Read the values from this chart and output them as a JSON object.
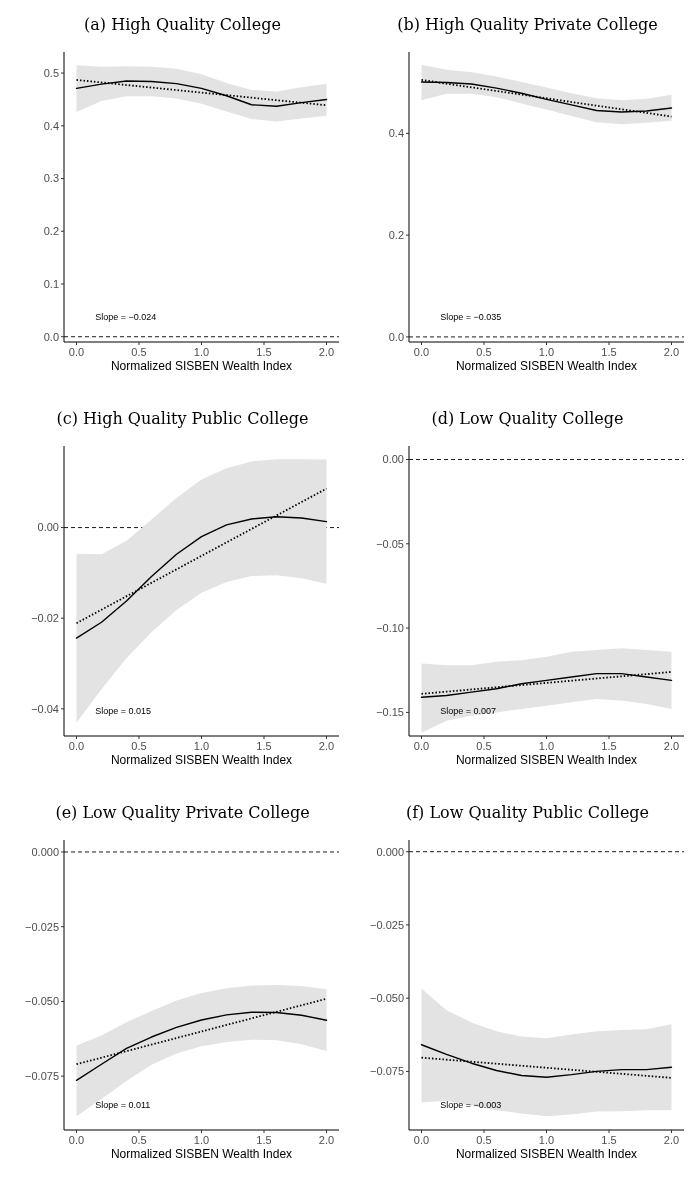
{
  "chart_data": [
    {
      "type": "line",
      "title": "(a) High Quality College",
      "xlabel": "Normalized SISBEN Wealth Index",
      "xlim": [
        -0.1,
        2.1
      ],
      "xticks": [
        {
          "value": 0,
          "label": "0.0"
        },
        {
          "value": 0.5,
          "label": "0.5"
        },
        {
          "value": 1,
          "label": "1.0"
        },
        {
          "value": 1.5,
          "label": "1.5"
        },
        {
          "value": 2,
          "label": "2.0"
        }
      ],
      "ylim": [
        -0.01,
        0.54
      ],
      "yticks": [
        {
          "value": 0,
          "label": "0.0"
        },
        {
          "value": 0.1,
          "label": "0.1"
        },
        {
          "value": 0.2,
          "label": "0.2"
        },
        {
          "value": 0.3,
          "label": "0.3"
        },
        {
          "value": 0.4,
          "label": "0.4"
        },
        {
          "value": 0.5,
          "label": "0.5"
        }
      ],
      "ref_lines": [
        {
          "axis": "y",
          "value": 0,
          "line_style": "dashed"
        }
      ],
      "annotations": [
        "Slope = −0.024"
      ],
      "series": [
        {
          "color": "#000000",
          "line_style": "solid",
          "x": [
            0,
            0.2,
            0.4,
            0.6,
            0.8,
            1,
            1.2,
            1.4,
            1.6,
            1.8,
            2
          ],
          "values": [
            0.471,
            0.479,
            0.485,
            0.484,
            0.48,
            0.471,
            0.457,
            0.44,
            0.437,
            0.444,
            0.45
          ],
          "lower": [
            0.426,
            0.447,
            0.456,
            0.456,
            0.452,
            0.442,
            0.427,
            0.413,
            0.408,
            0.414,
            0.419
          ],
          "upper": [
            0.515,
            0.512,
            0.513,
            0.512,
            0.508,
            0.498,
            0.481,
            0.468,
            0.465,
            0.473,
            0.48
          ]
        },
        {
          "color": "#000000",
          "line_style": "dotted",
          "x": [
            0,
            2
          ],
          "values": [
            0.487,
            0.439
          ]
        }
      ]
    },
    {
      "type": "line",
      "title": "(b) High Quality Private College",
      "xlabel": "Normalized SISBEN Wealth Index",
      "xlim": [
        -0.1,
        2.1
      ],
      "xticks": [
        {
          "value": 0,
          "label": "0.0"
        },
        {
          "value": 0.5,
          "label": "0.5"
        },
        {
          "value": 1,
          "label": "1.0"
        },
        {
          "value": 1.5,
          "label": "1.5"
        },
        {
          "value": 2,
          "label": "2.0"
        }
      ],
      "ylim": [
        -0.01,
        0.56
      ],
      "yticks": [
        {
          "value": 0,
          "label": "0.0"
        },
        {
          "value": 0.2,
          "label": "0.2"
        },
        {
          "value": 0.4,
          "label": "0.4"
        }
      ],
      "ref_lines": [
        {
          "axis": "y",
          "value": 0,
          "line_style": "dashed"
        }
      ],
      "annotations": [
        "Slope = −0.035"
      ],
      "series": [
        {
          "color": "#000000",
          "line_style": "solid",
          "x": [
            0,
            0.2,
            0.4,
            0.6,
            0.8,
            1,
            1.2,
            1.4,
            1.6,
            1.8,
            2
          ],
          "values": [
            0.501,
            0.5,
            0.497,
            0.489,
            0.479,
            0.467,
            0.456,
            0.445,
            0.442,
            0.444,
            0.45
          ],
          "lower": [
            0.465,
            0.478,
            0.478,
            0.471,
            0.459,
            0.447,
            0.434,
            0.422,
            0.418,
            0.421,
            0.425
          ],
          "upper": [
            0.535,
            0.525,
            0.52,
            0.512,
            0.501,
            0.49,
            0.479,
            0.469,
            0.465,
            0.468,
            0.476
          ]
        },
        {
          "color": "#000000",
          "line_style": "dotted",
          "x": [
            0,
            2
          ],
          "values": [
            0.505,
            0.433
          ]
        }
      ]
    },
    {
      "type": "line",
      "title": "(c) High Quality Public College",
      "xlabel": "Normalized SISBEN Wealth Index",
      "xlim": [
        -0.1,
        2.1
      ],
      "xticks": [
        {
          "value": 0,
          "label": "0.0"
        },
        {
          "value": 0.5,
          "label": "0.5"
        },
        {
          "value": 1,
          "label": "1.0"
        },
        {
          "value": 1.5,
          "label": "1.5"
        },
        {
          "value": 2,
          "label": "2.0"
        }
      ],
      "ylim": [
        -0.046,
        0.018
      ],
      "yticks": [
        {
          "value": -0.04,
          "label": "−0.04"
        },
        {
          "value": -0.02,
          "label": "−0.02"
        },
        {
          "value": 0,
          "label": "0.00"
        }
      ],
      "ref_lines": [
        {
          "axis": "y",
          "value": 0,
          "line_style": "dashed"
        }
      ],
      "annotations": [
        "Slope = 0.015"
      ],
      "series": [
        {
          "color": "#000000",
          "line_style": "solid",
          "x": [
            0,
            0.2,
            0.4,
            0.6,
            0.8,
            1,
            1.2,
            1.4,
            1.6,
            1.8,
            2
          ],
          "values": [
            -0.0244,
            -0.0209,
            -0.0162,
            -0.0108,
            -0.0059,
            -0.002,
            0.0006,
            0.0019,
            0.0024,
            0.0021,
            0.0013
          ],
          "lower": [
            -0.0431,
            -0.0357,
            -0.0288,
            -0.0231,
            -0.0182,
            -0.0144,
            -0.012,
            -0.0107,
            -0.0105,
            -0.0112,
            -0.0124
          ],
          "upper": [
            -0.0058,
            -0.0059,
            -0.0029,
            0.0018,
            0.0065,
            0.0106,
            0.0131,
            0.0146,
            0.0151,
            0.0151,
            0.015
          ]
        },
        {
          "color": "#000000",
          "line_style": "dotted",
          "x": [
            0,
            2
          ],
          "values": [
            -0.0211,
            0.0086
          ]
        }
      ]
    },
    {
      "type": "line",
      "title": "(d) Low Quality College",
      "xlabel": "Normalized SISBEN Wealth Index",
      "xlim": [
        -0.1,
        2.1
      ],
      "xticks": [
        {
          "value": 0,
          "label": "0.0"
        },
        {
          "value": 0.5,
          "label": "0.5"
        },
        {
          "value": 1,
          "label": "1.0"
        },
        {
          "value": 1.5,
          "label": "1.5"
        },
        {
          "value": 2,
          "label": "2.0"
        }
      ],
      "ylim": [
        -0.164,
        0.008
      ],
      "yticks": [
        {
          "value": -0.15,
          "label": "−0.15"
        },
        {
          "value": -0.1,
          "label": "−0.10"
        },
        {
          "value": -0.05,
          "label": "−0.05"
        },
        {
          "value": 0,
          "label": "0.00"
        }
      ],
      "ref_lines": [
        {
          "axis": "y",
          "value": 0,
          "line_style": "dashed"
        }
      ],
      "annotations": [
        "Slope = 0.007"
      ],
      "series": [
        {
          "color": "#000000",
          "line_style": "solid",
          "x": [
            0,
            0.2,
            0.4,
            0.6,
            0.8,
            1,
            1.2,
            1.4,
            1.6,
            1.8,
            2
          ],
          "values": [
            -0.141,
            -0.14,
            -0.138,
            -0.136,
            -0.133,
            -0.131,
            -0.129,
            -0.127,
            -0.127,
            -0.129,
            -0.131
          ],
          "lower": [
            -0.162,
            -0.155,
            -0.152,
            -0.15,
            -0.148,
            -0.146,
            -0.144,
            -0.142,
            -0.143,
            -0.145,
            -0.148
          ],
          "upper": [
            -0.121,
            -0.122,
            -0.122,
            -0.12,
            -0.119,
            -0.117,
            -0.114,
            -0.113,
            -0.112,
            -0.113,
            -0.114
          ]
        },
        {
          "color": "#000000",
          "line_style": "dotted",
          "x": [
            0,
            2
          ],
          "values": [
            -0.139,
            -0.126
          ]
        }
      ]
    },
    {
      "type": "line",
      "title": "(e) Low Quality Private College",
      "xlabel": "Normalized SISBEN Wealth Index",
      "xlim": [
        -0.1,
        2.1
      ],
      "xticks": [
        {
          "value": 0,
          "label": "0.0"
        },
        {
          "value": 0.5,
          "label": "0.5"
        },
        {
          "value": 1,
          "label": "1.0"
        },
        {
          "value": 1.5,
          "label": "1.5"
        },
        {
          "value": 2,
          "label": "2.0"
        }
      ],
      "ylim": [
        -0.093,
        0.004
      ],
      "yticks": [
        {
          "value": -0.075,
          "label": "−0.075"
        },
        {
          "value": -0.05,
          "label": "−0.050"
        },
        {
          "value": -0.025,
          "label": "−0.025"
        },
        {
          "value": 0,
          "label": "0.000"
        }
      ],
      "ref_lines": [
        {
          "axis": "y",
          "value": 0,
          "line_style": "dashed"
        }
      ],
      "annotations": [
        "Slope = 0.011"
      ],
      "series": [
        {
          "color": "#000000",
          "line_style": "solid",
          "x": [
            0,
            0.2,
            0.4,
            0.6,
            0.8,
            1,
            1.2,
            1.4,
            1.6,
            1.8,
            2
          ],
          "values": [
            -0.0764,
            -0.071,
            -0.0657,
            -0.0619,
            -0.0587,
            -0.0562,
            -0.0545,
            -0.0536,
            -0.0537,
            -0.0546,
            -0.0563
          ],
          "lower": [
            -0.0884,
            -0.0826,
            -0.0766,
            -0.0712,
            -0.0674,
            -0.065,
            -0.0636,
            -0.0628,
            -0.063,
            -0.0643,
            -0.0666
          ],
          "upper": [
            -0.0647,
            -0.0614,
            -0.057,
            -0.0532,
            -0.0497,
            -0.0472,
            -0.0456,
            -0.0447,
            -0.0445,
            -0.0448,
            -0.0459
          ]
        },
        {
          "color": "#000000",
          "line_style": "dotted",
          "x": [
            0,
            2
          ],
          "values": [
            -0.071,
            -0.0491
          ]
        }
      ]
    },
    {
      "type": "line",
      "title": "(f) Low Quality Public College",
      "xlabel": "Normalized SISBEN Wealth Index",
      "xlim": [
        -0.1,
        2.1
      ],
      "xticks": [
        {
          "value": 0,
          "label": "0.0"
        },
        {
          "value": 0.5,
          "label": "0.5"
        },
        {
          "value": 1,
          "label": "1.0"
        },
        {
          "value": 1.5,
          "label": "1.5"
        },
        {
          "value": 2,
          "label": "2.0"
        }
      ],
      "ylim": [
        -0.095,
        0.004
      ],
      "yticks": [
        {
          "value": -0.075,
          "label": "−0.075"
        },
        {
          "value": -0.05,
          "label": "−0.050"
        },
        {
          "value": -0.025,
          "label": "−0.025"
        },
        {
          "value": 0,
          "label": "0.000"
        }
      ],
      "ref_lines": [
        {
          "axis": "y",
          "value": 0,
          "line_style": "dashed"
        }
      ],
      "annotations": [
        "Slope = −0.003"
      ],
      "series": [
        {
          "color": "#000000",
          "line_style": "solid",
          "x": [
            0,
            0.2,
            0.4,
            0.6,
            0.8,
            1,
            1.2,
            1.4,
            1.6,
            1.8,
            2
          ],
          "values": [
            -0.0659,
            -0.0692,
            -0.0722,
            -0.0747,
            -0.0764,
            -0.077,
            -0.0761,
            -0.075,
            -0.0744,
            -0.0744,
            -0.0736
          ],
          "lower": [
            -0.0856,
            -0.085,
            -0.0867,
            -0.0883,
            -0.0894,
            -0.0903,
            -0.0897,
            -0.0887,
            -0.0886,
            -0.0883,
            -0.0883
          ],
          "upper": [
            -0.0467,
            -0.0541,
            -0.0583,
            -0.0613,
            -0.0631,
            -0.0637,
            -0.0624,
            -0.0613,
            -0.0609,
            -0.0606,
            -0.0589
          ]
        },
        {
          "color": "#000000",
          "line_style": "dotted",
          "x": [
            0,
            2
          ],
          "values": [
            -0.0703,
            -0.0772
          ]
        }
      ]
    }
  ]
}
